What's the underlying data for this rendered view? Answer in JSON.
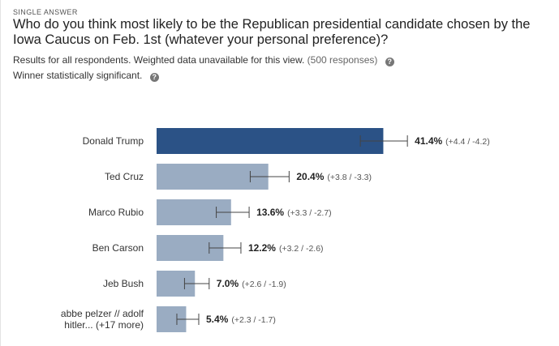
{
  "header": {
    "type_label": "SINGLE ANSWER",
    "question": "Who do you think most likely to be the Republican presidential candidate chosen by the Iowa Caucus on Feb. 1st (whatever your personal preference)?"
  },
  "meta": {
    "results_text": "Results for all respondents. Weighted data unavailable for this view.",
    "responses_text": "(500 responses)",
    "significance_text": "Winner statistically significant.",
    "help_icon_glyph": "?"
  },
  "colors": {
    "winner_bar": "#2b5286",
    "other_bar": "#9aacc2",
    "error_bar": "#444444"
  },
  "chart_data": {
    "type": "bar",
    "orientation": "horizontal",
    "xlim": [
      0,
      100
    ],
    "categories": [
      [
        "Donald Trump"
      ],
      [
        "Ted Cruz"
      ],
      [
        "Marco Rubio"
      ],
      [
        "Ben Carson"
      ],
      [
        "Jeb Bush"
      ],
      [
        "abbe pelzer // adolf",
        "hitler... (+17 more)"
      ]
    ],
    "values": [
      41.4,
      20.4,
      13.6,
      12.2,
      7.0,
      5.4
    ],
    "value_labels": [
      "41.4%",
      "20.4%",
      "13.6%",
      "12.2%",
      "7.0%",
      "5.4%"
    ],
    "error_plus": [
      4.4,
      3.8,
      3.3,
      3.2,
      2.6,
      2.3
    ],
    "error_minus": [
      4.2,
      3.3,
      2.7,
      2.6,
      1.9,
      1.7
    ],
    "error_labels": [
      "(+4.4 / -4.2)",
      "(+3.8 / -3.3)",
      "(+3.3 / -2.7)",
      "(+3.2 / -2.6)",
      "(+2.6 / -1.9)",
      "(+2.3 / -1.7)"
    ],
    "highlight_index": 0
  }
}
